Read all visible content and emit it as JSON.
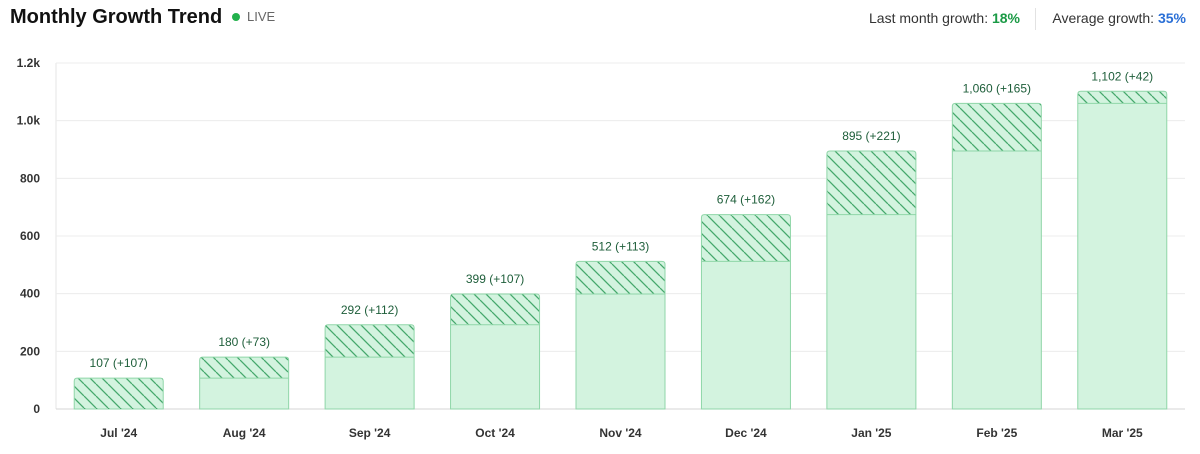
{
  "header": {
    "title": "Monthly Growth Trend",
    "live_label": "LIVE",
    "last_month_label": "Last month growth:",
    "last_month_value": "18%",
    "average_label": "Average growth:",
    "average_value": "35%"
  },
  "colors": {
    "bar_fill": "#d3f3df",
    "bar_stroke": "#8fd6a8",
    "hatch": "#45a86c",
    "live_dot": "#22b14c",
    "green_value": "#1a9a45",
    "blue_value": "#2a6fd6"
  },
  "chart_data": {
    "type": "bar",
    "title": "Monthly Growth Trend",
    "categories": [
      "Jul '24",
      "Aug '24",
      "Sep '24",
      "Oct '24",
      "Nov '24",
      "Dec '24",
      "Jan '25",
      "Feb '25",
      "Mar '25"
    ],
    "totals": [
      107,
      180,
      292,
      399,
      512,
      674,
      895,
      1060,
      1102
    ],
    "increments": [
      107,
      73,
      112,
      107,
      113,
      162,
      221,
      165,
      42
    ],
    "labels": [
      "107 (+107)",
      "180 (+73)",
      "292 (+112)",
      "399 (+107)",
      "512 (+113)",
      "674 (+162)",
      "895 (+221)",
      "1,060 (+165)",
      "1,102 (+42)"
    ],
    "series": [
      {
        "name": "",
        "values": [
          0,
          107,
          180,
          292,
          399,
          512,
          674,
          895,
          1060
        ]
      },
      {
        "name": "",
        "values": [
          107,
          73,
          112,
          107,
          113,
          162,
          221,
          165,
          42
        ]
      }
    ],
    "ylim": [
      0,
      1200
    ],
    "yticks": [
      0,
      200,
      400,
      600,
      800,
      1000,
      1200
    ],
    "ytick_labels": [
      "0",
      "200",
      "400",
      "600",
      "800",
      "1.0k",
      "1.2k"
    ],
    "grid": true,
    "xlabel": "",
    "ylabel": ""
  }
}
